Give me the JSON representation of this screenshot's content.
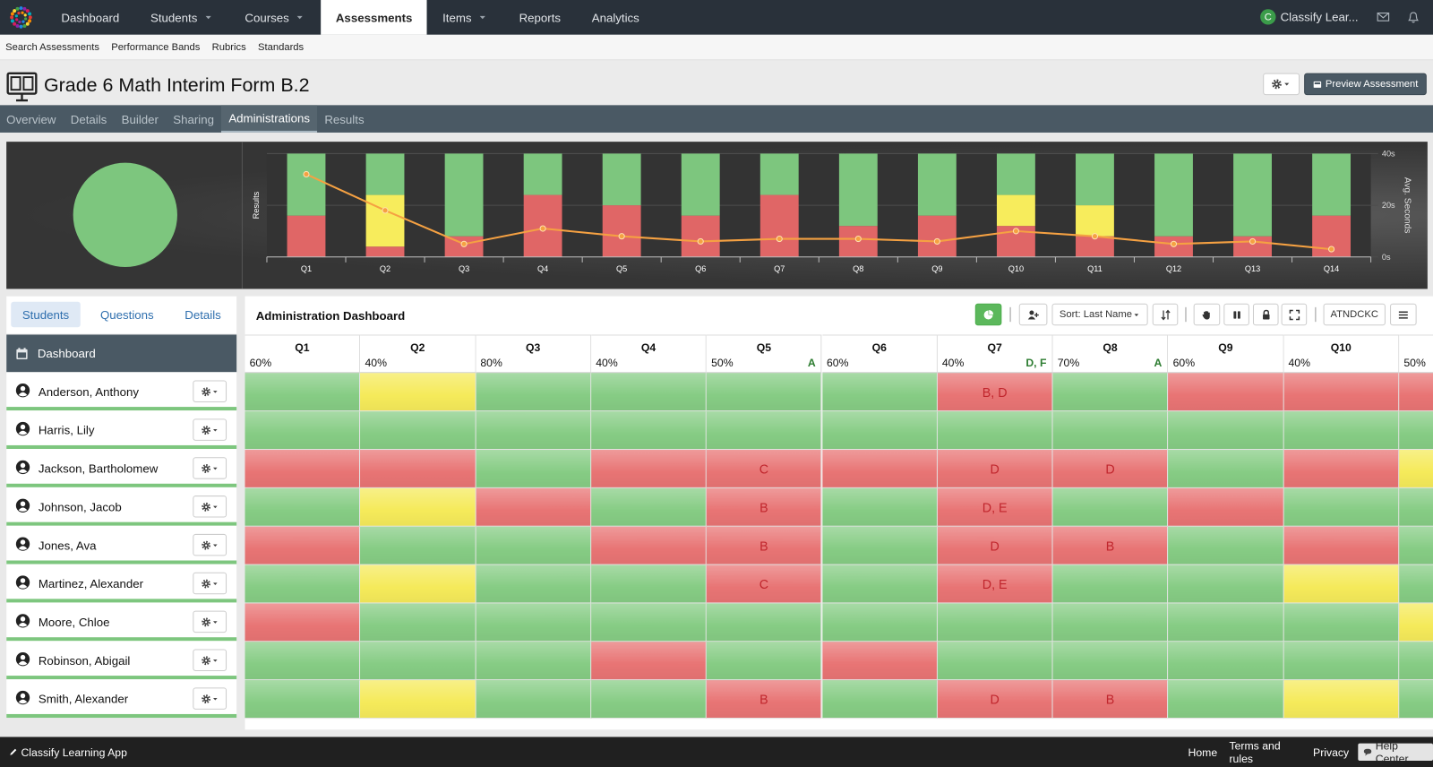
{
  "nav": {
    "items": [
      "Dashboard",
      "Students",
      "Courses",
      "Assessments",
      "Items",
      "Reports",
      "Analytics"
    ],
    "dropdown": [
      false,
      true,
      true,
      false,
      true,
      false,
      false
    ],
    "active": 3,
    "account_initial": "C",
    "account": "Classify Lear..."
  },
  "subnav": [
    "Search Assessments",
    "Performance Bands",
    "Rubrics",
    "Standards"
  ],
  "header": {
    "title": "Grade 6 Math Interim Form B.2",
    "preview_button": "Preview Assessment"
  },
  "tabs": {
    "items": [
      "Overview",
      "Details",
      "Builder",
      "Sharing",
      "Administrations",
      "Results"
    ],
    "active": 4
  },
  "chart_data": [
    {
      "type": "pie",
      "values": [
        100
      ],
      "colors": [
        "#7dc67e"
      ]
    },
    {
      "type": "bar",
      "stacked": true,
      "ylabel": "Results",
      "y2label": "Avg. Seconds",
      "categories": [
        "Q1",
        "Q2",
        "Q3",
        "Q4",
        "Q5",
        "Q6",
        "Q7",
        "Q8",
        "Q9",
        "Q10",
        "Q11",
        "Q12",
        "Q13",
        "Q14"
      ],
      "ylim": [
        0,
        100
      ],
      "y2lim": [
        0,
        40
      ],
      "y2ticks": [
        {
          "value": 0,
          "label": "0s"
        },
        {
          "value": 20,
          "label": "20s"
        },
        {
          "value": 40,
          "label": "40s"
        }
      ],
      "series": [
        {
          "color": "#e06666",
          "values": [
            40,
            10,
            20,
            60,
            50,
            40,
            60,
            30,
            40,
            30,
            20,
            20,
            20,
            40
          ]
        },
        {
          "color": "#f7ec5c",
          "values": [
            0,
            50,
            0,
            0,
            0,
            0,
            0,
            0,
            0,
            30,
            30,
            0,
            0,
            0
          ]
        },
        {
          "color": "#7dc67e",
          "values": [
            60,
            40,
            80,
            40,
            50,
            60,
            40,
            70,
            60,
            40,
            50,
            80,
            80,
            60
          ]
        },
        {
          "type": "line",
          "axis": "y2",
          "color": "#f5a142",
          "values": [
            32,
            18,
            5,
            11,
            8,
            6,
            7,
            7,
            6,
            10,
            8,
            5,
            6,
            3
          ]
        }
      ]
    }
  ],
  "sidebar": {
    "tabs": [
      "Students",
      "Questions",
      "Details"
    ],
    "active": 0,
    "dashboard": "Dashboard",
    "students": [
      "Anderson, Anthony",
      "Harris, Lily",
      "Jackson, Bartholomew",
      "Johnson, Jacob",
      "Jones, Ava",
      "Martinez, Alexander",
      "Moore, Chloe",
      "Robinson, Abigail",
      "Smith, Alexander"
    ]
  },
  "dashboard": {
    "title": "Administration Dashboard",
    "sort": "Sort: Last Name",
    "attendance_button": "ATNDCKC",
    "cell_colors": {
      "g": "#86cc84",
      "r": "#e87474",
      "y": "#f5ea5a"
    },
    "columns": [
      {
        "name": "Q1",
        "percent": "60%",
        "correct": null
      },
      {
        "name": "Q2",
        "percent": "40%",
        "correct": null
      },
      {
        "name": "Q3",
        "percent": "80%",
        "correct": null
      },
      {
        "name": "Q4",
        "percent": "40%",
        "correct": null
      },
      {
        "name": "Q5",
        "percent": "50%",
        "correct": "A"
      },
      {
        "name": "Q6",
        "percent": "60%",
        "correct": null
      },
      {
        "name": "Q7",
        "percent": "40%",
        "correct": "D, F"
      },
      {
        "name": "Q8",
        "percent": "70%",
        "correct": "A"
      },
      {
        "name": "Q9",
        "percent": "60%",
        "correct": null
      },
      {
        "name": "Q10",
        "percent": "40%",
        "correct": null
      },
      {
        "name": null,
        "percent": "50%",
        "correct": null
      }
    ],
    "rows": [
      {
        "status": [
          "g",
          "y",
          "g",
          "g",
          "g",
          "g",
          "r",
          "g",
          "r",
          "r",
          "r"
        ],
        "answers": [
          null,
          null,
          null,
          null,
          null,
          null,
          "B, D",
          null,
          null,
          null,
          null
        ]
      },
      {
        "status": [
          "g",
          "g",
          "g",
          "g",
          "g",
          "g",
          "g",
          "g",
          "g",
          "g",
          "g"
        ],
        "answers": [
          null,
          null,
          null,
          null,
          null,
          null,
          null,
          null,
          null,
          null,
          null
        ]
      },
      {
        "status": [
          "r",
          "r",
          "g",
          "r",
          "r",
          "r",
          "r",
          "r",
          "g",
          "r",
          "y"
        ],
        "answers": [
          null,
          null,
          null,
          null,
          "C",
          null,
          "D",
          "D",
          null,
          null,
          null
        ]
      },
      {
        "status": [
          "g",
          "y",
          "r",
          "g",
          "r",
          "g",
          "r",
          "g",
          "r",
          "g",
          "g"
        ],
        "answers": [
          null,
          null,
          null,
          null,
          "B",
          null,
          "D, E",
          null,
          null,
          null,
          null
        ]
      },
      {
        "status": [
          "r",
          "g",
          "g",
          "r",
          "r",
          "g",
          "r",
          "r",
          "g",
          "r",
          "g"
        ],
        "answers": [
          null,
          null,
          null,
          null,
          "B",
          null,
          "D",
          "B",
          null,
          null,
          null
        ]
      },
      {
        "status": [
          "g",
          "y",
          "g",
          "g",
          "r",
          "g",
          "r",
          "g",
          "g",
          "y",
          "g"
        ],
        "answers": [
          null,
          null,
          null,
          null,
          "C",
          null,
          "D, E",
          null,
          null,
          null,
          null
        ]
      },
      {
        "status": [
          "r",
          "g",
          "g",
          "g",
          "g",
          "g",
          "g",
          "g",
          "g",
          "g",
          "y"
        ],
        "answers": [
          null,
          null,
          null,
          null,
          null,
          null,
          null,
          null,
          null,
          null,
          null
        ]
      },
      {
        "status": [
          "g",
          "g",
          "g",
          "r",
          "g",
          "r",
          "g",
          "g",
          "g",
          "g",
          "g"
        ],
        "answers": [
          null,
          null,
          null,
          null,
          null,
          null,
          null,
          null,
          null,
          null,
          null
        ]
      },
      {
        "status": [
          "g",
          "y",
          "g",
          "g",
          "r",
          "g",
          "r",
          "r",
          "g",
          "y",
          "g"
        ],
        "answers": [
          null,
          null,
          null,
          null,
          "B",
          null,
          "D",
          "B",
          null,
          null,
          null
        ]
      }
    ]
  },
  "footer": {
    "app": "Classify Learning App",
    "links": [
      "Home",
      "Terms and rules",
      "Privacy"
    ],
    "help": "Help Center"
  }
}
